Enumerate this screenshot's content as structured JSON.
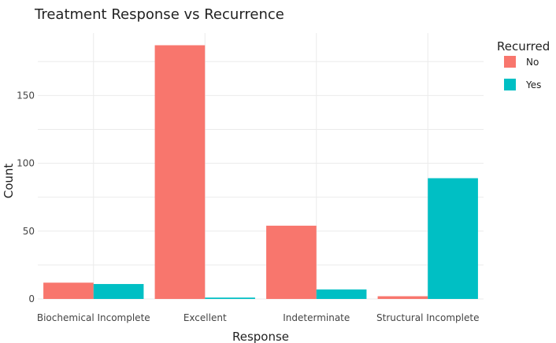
{
  "chart_data": {
    "type": "bar",
    "title": "Treatment Response vs Recurrence",
    "xlabel": "Response",
    "ylabel": "Count",
    "categories": [
      "Biochemical Incomplete",
      "Excellent",
      "Indeterminate",
      "Structural Incomplete"
    ],
    "series": [
      {
        "name": "No",
        "color": "#F8766D",
        "values": [
          12,
          187,
          54,
          2
        ]
      },
      {
        "name": "Yes",
        "color": "#00BFC4",
        "values": [
          11,
          1,
          7,
          89
        ]
      }
    ],
    "yticks": [
      0,
      50,
      100,
      150
    ],
    "ylim": [
      0,
      196
    ],
    "grid": true,
    "legend": {
      "title": "Recurred",
      "position": "top-right"
    }
  }
}
